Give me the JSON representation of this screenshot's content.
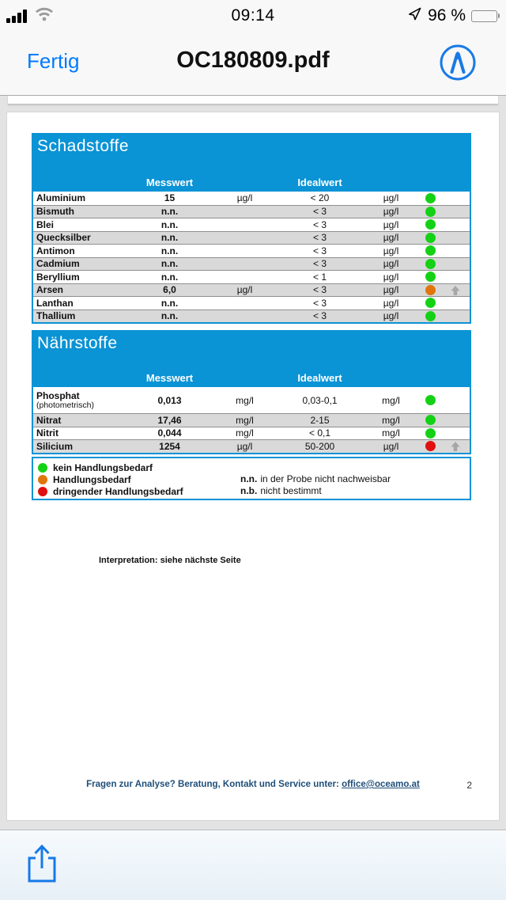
{
  "status_bar": {
    "time": "09:14",
    "battery_percent": "96 %"
  },
  "nav_bar": {
    "done_label": "Fertig",
    "title": "OC180809.pdf"
  },
  "pdf": {
    "tables": [
      {
        "title": "Schadstoffe",
        "col_measured": "Messwert",
        "col_ideal": "Idealwert",
        "rows": [
          {
            "name": "Aluminium",
            "sub": "",
            "value": "15",
            "unit": "µg/l",
            "ideal": "< 20",
            "ideal_unit": "µg/l",
            "status": "green",
            "trend": ""
          },
          {
            "name": "Bismuth",
            "sub": "",
            "value": "n.n.",
            "unit": "",
            "ideal": "< 3",
            "ideal_unit": "µg/l",
            "status": "green",
            "trend": ""
          },
          {
            "name": "Blei",
            "sub": "",
            "value": "n.n.",
            "unit": "",
            "ideal": "< 3",
            "ideal_unit": "µg/l",
            "status": "green",
            "trend": ""
          },
          {
            "name": "Quecksilber",
            "sub": "",
            "value": "n.n.",
            "unit": "",
            "ideal": "< 3",
            "ideal_unit": "µg/l",
            "status": "green",
            "trend": ""
          },
          {
            "name": "Antimon",
            "sub": "",
            "value": "n.n.",
            "unit": "",
            "ideal": "< 3",
            "ideal_unit": "µg/l",
            "status": "green",
            "trend": ""
          },
          {
            "name": "Cadmium",
            "sub": "",
            "value": "n.n.",
            "unit": "",
            "ideal": "< 3",
            "ideal_unit": "µg/l",
            "status": "green",
            "trend": ""
          },
          {
            "name": "Beryllium",
            "sub": "",
            "value": "n.n.",
            "unit": "",
            "ideal": "< 1",
            "ideal_unit": "µg/l",
            "status": "green",
            "trend": ""
          },
          {
            "name": "Arsen",
            "sub": "",
            "value": "6,0",
            "unit": "µg/l",
            "ideal": "< 3",
            "ideal_unit": "µg/l",
            "status": "orange",
            "trend": "up"
          },
          {
            "name": "Lanthan",
            "sub": "",
            "value": "n.n.",
            "unit": "",
            "ideal": "< 3",
            "ideal_unit": "µg/l",
            "status": "green",
            "trend": ""
          },
          {
            "name": "Thallium",
            "sub": "",
            "value": "n.n.",
            "unit": "",
            "ideal": "< 3",
            "ideal_unit": "µg/l",
            "status": "green",
            "trend": ""
          }
        ]
      },
      {
        "title": "Nährstoffe",
        "col_measured": "Messwert",
        "col_ideal": "Idealwert",
        "rows": [
          {
            "name": "Phosphat",
            "sub": "(photometrisch)",
            "value": "0,013",
            "unit": "mg/l",
            "ideal": "0,03-0,1",
            "ideal_unit": "mg/l",
            "status": "green",
            "trend": ""
          },
          {
            "name": "Nitrat",
            "sub": "",
            "value": "17,46",
            "unit": "mg/l",
            "ideal": "2-15",
            "ideal_unit": "mg/l",
            "status": "green",
            "trend": ""
          },
          {
            "name": "Nitrit",
            "sub": "",
            "value": "0,044",
            "unit": "mg/l",
            "ideal": "< 0,1",
            "ideal_unit": "mg/l",
            "status": "green",
            "trend": ""
          },
          {
            "name": "Silicium",
            "sub": "",
            "value": "1254",
            "unit": "µg/l",
            "ideal": "50-200",
            "ideal_unit": "µg/l",
            "status": "red",
            "trend": "up"
          }
        ]
      }
    ],
    "legend": {
      "items": [
        {
          "color": "green",
          "label": "kein Handlungsbedarf"
        },
        {
          "color": "orange",
          "label": "Handlungsbedarf"
        },
        {
          "color": "red",
          "label": "dringender Handlungsbedarf"
        }
      ],
      "abbreviations": [
        {
          "abbr": "n.n.",
          "text": "in der Probe nicht nachweisbar"
        },
        {
          "abbr": "n.b.",
          "text": "nicht bestimmt"
        }
      ]
    },
    "interpretation": "Interpretation: siehe nächste Seite",
    "footer": {
      "text": "Fragen zur Analyse? Beratung, Kontakt und Service unter:",
      "email": "office@oceamo.at",
      "page_number": "2"
    }
  },
  "colors": {
    "brand_blue": "#0a93d5",
    "status_green": "#15d115",
    "status_orange": "#e0760b",
    "status_red": "#e01010",
    "ios_blue": "#007aff",
    "footer_blue": "#1f4e79",
    "trend_gray": "#a6a6a6"
  }
}
